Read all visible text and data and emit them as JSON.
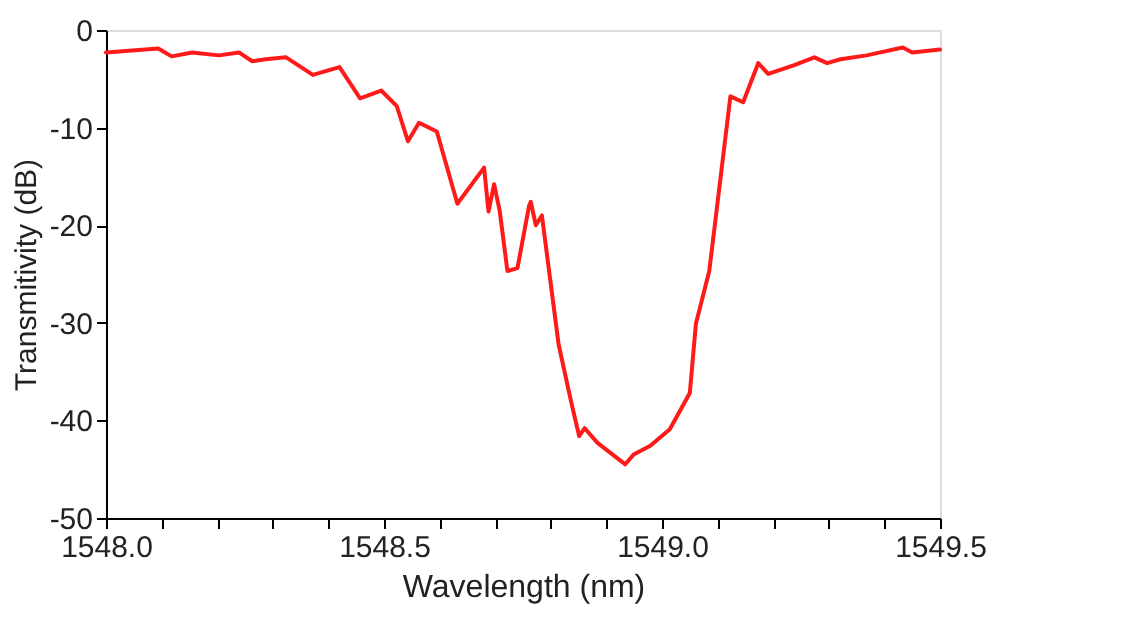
{
  "chart_data": {
    "type": "line",
    "xlabel": "Wavelength (nm)",
    "ylabel": "Transmitivity (dB)",
    "xlim": [
      1548.0,
      1549.5
    ],
    "ylim": [
      -50,
      0
    ],
    "xticks": [
      {
        "value": 1548.0,
        "label": "1548.0"
      },
      {
        "value": 1548.1,
        "label": null
      },
      {
        "value": 1548.2,
        "label": null
      },
      {
        "value": 1548.3,
        "label": null
      },
      {
        "value": 1548.4,
        "label": null
      },
      {
        "value": 1548.5,
        "label": "1548.5"
      },
      {
        "value": 1548.6,
        "label": null
      },
      {
        "value": 1548.7,
        "label": null
      },
      {
        "value": 1548.8,
        "label": null
      },
      {
        "value": 1548.9,
        "label": null
      },
      {
        "value": 1549.0,
        "label": "1549.0"
      },
      {
        "value": 1549.1,
        "label": null
      },
      {
        "value": 1549.2,
        "label": null
      },
      {
        "value": 1549.3,
        "label": null
      },
      {
        "value": 1549.4,
        "label": null
      },
      {
        "value": 1549.5,
        "label": "1549.5"
      }
    ],
    "yticks": [
      -50,
      -40,
      -30,
      -20,
      -10,
      0
    ],
    "grid": false,
    "marker": "none",
    "line_style": "solid",
    "series": [
      {
        "color": "#ff1a1a",
        "x": [
          1548.0,
          1548.094,
          1548.118,
          1548.155,
          1548.203,
          1548.239,
          1548.263,
          1548.287,
          1548.324,
          1548.372,
          1548.42,
          1548.457,
          1548.495,
          1548.523,
          1548.543,
          1548.563,
          1548.595,
          1548.632,
          1548.68,
          1548.688,
          1548.698,
          1548.708,
          1548.722,
          1548.74,
          1548.761,
          1548.764,
          1548.773,
          1548.784,
          1548.814,
          1548.837,
          1548.851,
          1548.861,
          1548.884,
          1548.934,
          1548.949,
          1548.979,
          1549.014,
          1549.05,
          1549.061,
          1549.085,
          1549.123,
          1549.146,
          1549.173,
          1549.191,
          1549.238,
          1549.274,
          1549.297,
          1549.321,
          1549.368,
          1549.433,
          1549.45,
          1549.5
        ],
        "values": [
          -2.3,
          -1.9,
          -2.7,
          -2.3,
          -2.6,
          -2.3,
          -3.2,
          -3.0,
          -2.8,
          -4.6,
          -3.8,
          -7.0,
          -6.2,
          -7.8,
          -11.4,
          -9.5,
          -10.4,
          -17.8,
          -14.1,
          -18.6,
          -15.8,
          -18.5,
          -24.7,
          -24.4,
          -18.0,
          -17.6,
          -20.0,
          -19.0,
          -32.2,
          -38.2,
          -41.6,
          -40.8,
          -42.3,
          -44.5,
          -43.5,
          -42.6,
          -40.9,
          -37.2,
          -30.1,
          -24.7,
          -6.8,
          -7.4,
          -3.4,
          -4.5,
          -3.6,
          -2.8,
          -3.4,
          -3.0,
          -2.6,
          -1.8,
          -2.3,
          -2.0
        ]
      }
    ]
  }
}
